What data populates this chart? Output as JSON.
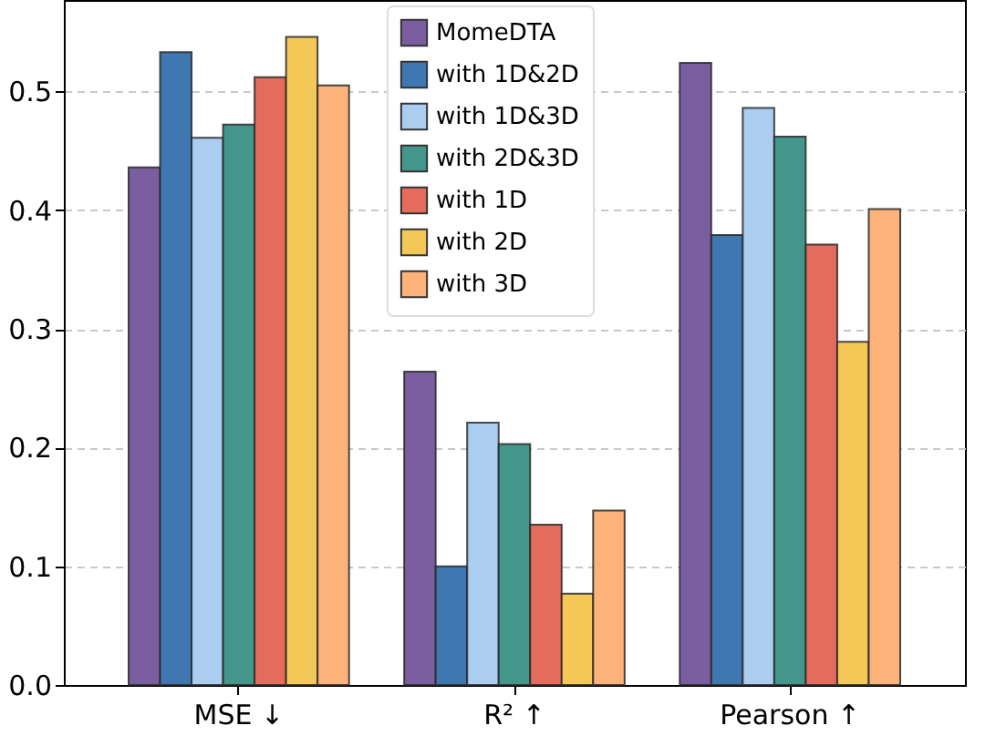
{
  "chart_data": {
    "type": "bar",
    "categories": [
      "MSE ↓",
      "R² ↑",
      "Pearson ↑"
    ],
    "series": [
      {
        "name": "MomeDTA",
        "color": "#7b5ea0",
        "values": [
          0.436,
          0.264,
          0.524
        ]
      },
      {
        "name": "with 1D&2D",
        "color": "#3f77b1",
        "values": [
          0.533,
          0.1,
          0.379
        ]
      },
      {
        "name": "with 1D&3D",
        "color": "#aacdf0",
        "values": [
          0.461,
          0.221,
          0.486
        ]
      },
      {
        "name": "with 2D&3D",
        "color": "#43968a",
        "values": [
          0.472,
          0.203,
          0.462
        ]
      },
      {
        "name": "with 1D",
        "color": "#e56b5c",
        "values": [
          0.512,
          0.135,
          0.371
        ]
      },
      {
        "name": "with 2D",
        "color": "#f4c856",
        "values": [
          0.546,
          0.077,
          0.289
        ]
      },
      {
        "name": "with 3D",
        "color": "#fdb27a",
        "values": [
          0.505,
          0.147,
          0.401
        ]
      }
    ],
    "ylim": [
      0,
      0.577
    ],
    "yticks": [
      {
        "value": 0,
        "label": "0.0"
      },
      0.1,
      0.2,
      0.3,
      0.4,
      0.5
    ],
    "grid": "y",
    "legend": "top"
  }
}
